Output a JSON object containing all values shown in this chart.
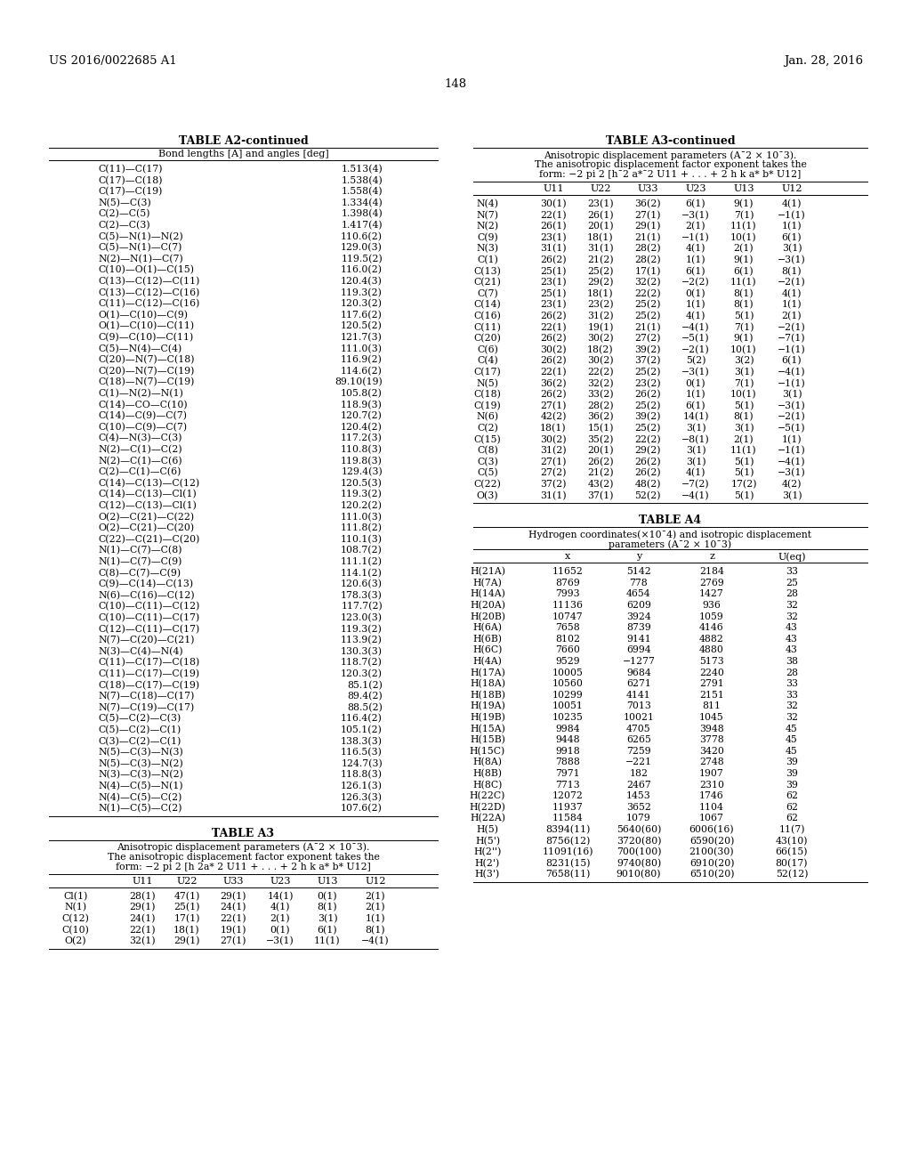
{
  "page_header_left": "US 2016/0022685 A1",
  "page_header_right": "Jan. 28, 2016",
  "page_number": "148",
  "bg_color": "#ffffff",
  "text_color": "#000000",
  "table_a2_title": "TABLE A2-continued",
  "table_a2_subtitle": "Bond lengths [A] and angles [deg]",
  "table_a2_data": [
    [
      "C(11)—C(17)",
      "1.513(4)"
    ],
    [
      "C(17)—C(18)",
      "1.538(4)"
    ],
    [
      "C(17)—C(19)",
      "1.558(4)"
    ],
    [
      "N(5)—C(3)",
      "1.334(4)"
    ],
    [
      "C(2)—C(5)",
      "1.398(4)"
    ],
    [
      "C(2)—C(3)",
      "1.417(4)"
    ],
    [
      "C(5)—N(1)—N(2)",
      "110.6(2)"
    ],
    [
      "C(5)—N(1)—C(7)",
      "129.0(3)"
    ],
    [
      "N(2)—N(1)—C(7)",
      "119.5(2)"
    ],
    [
      "C(10)—O(1)—C(15)",
      "116.0(2)"
    ],
    [
      "C(13)—C(12)—C(11)",
      "120.4(3)"
    ],
    [
      "C(13)—C(12)—C(16)",
      "119.3(2)"
    ],
    [
      "C(11)—C(12)—C(16)",
      "120.3(2)"
    ],
    [
      "O(1)—C(10)—C(9)",
      "117.6(2)"
    ],
    [
      "O(1)—C(10)—C(11)",
      "120.5(2)"
    ],
    [
      "C(9)—C(10)—C(11)",
      "121.7(3)"
    ],
    [
      "C(5)—N(4)—C(4)",
      "111.0(3)"
    ],
    [
      "C(20)—N(7)—C(18)",
      "116.9(2)"
    ],
    [
      "C(20)—N(7)—C(19)",
      "114.6(2)"
    ],
    [
      "C(18)—N(7)—C(19)",
      "89.10(19)"
    ],
    [
      "C(1)—N(2)—N(1)",
      "105.8(2)"
    ],
    [
      "C(14)—CO—C(10)",
      "118.9(3)"
    ],
    [
      "C(14)—C(9)—C(7)",
      "120.7(2)"
    ],
    [
      "C(10)—C(9)—C(7)",
      "120.4(2)"
    ],
    [
      "C(4)—N(3)—C(3)",
      "117.2(3)"
    ],
    [
      "N(2)—C(1)—C(2)",
      "110.8(3)"
    ],
    [
      "N(2)—C(1)—C(6)",
      "119.8(3)"
    ],
    [
      "C(2)—C(1)—C(6)",
      "129.4(3)"
    ],
    [
      "C(14)—C(13)—C(12)",
      "120.5(3)"
    ],
    [
      "C(14)—C(13)—Cl(1)",
      "119.3(2)"
    ],
    [
      "C(12)—C(13)—Cl(1)",
      "120.2(2)"
    ],
    [
      "O(2)—C(21)—C(22)",
      "111.0(3)"
    ],
    [
      "O(2)—C(21)—C(20)",
      "111.8(2)"
    ],
    [
      "C(22)—C(21)—C(20)",
      "110.1(3)"
    ],
    [
      "N(1)—C(7)—C(8)",
      "108.7(2)"
    ],
    [
      "N(1)—C(7)—C(9)",
      "111.1(2)"
    ],
    [
      "C(8)—C(7)—C(9)",
      "114.1(2)"
    ],
    [
      "C(9)—C(14)—C(13)",
      "120.6(3)"
    ],
    [
      "N(6)—C(16)—C(12)",
      "178.3(3)"
    ],
    [
      "C(10)—C(11)—C(12)",
      "117.7(2)"
    ],
    [
      "C(10)—C(11)—C(17)",
      "123.0(3)"
    ],
    [
      "C(12)—C(11)—C(17)",
      "119.3(2)"
    ],
    [
      "N(7)—C(20)—C(21)",
      "113.9(2)"
    ],
    [
      "N(3)—C(4)—N(4)",
      "130.3(3)"
    ],
    [
      "C(11)—C(17)—C(18)",
      "118.7(2)"
    ],
    [
      "C(11)—C(17)—C(19)",
      "120.3(2)"
    ],
    [
      "C(18)—C(17)—C(19)",
      "85.1(2)"
    ],
    [
      "N(7)—C(18)—C(17)",
      "89.4(2)"
    ],
    [
      "N(7)—C(19)—C(17)",
      "88.5(2)"
    ],
    [
      "C(5)—C(2)—C(3)",
      "116.4(2)"
    ],
    [
      "C(5)—C(2)—C(1)",
      "105.1(2)"
    ],
    [
      "C(3)—C(2)—C(1)",
      "138.3(3)"
    ],
    [
      "N(5)—C(3)—N(3)",
      "116.5(3)"
    ],
    [
      "N(5)—C(3)—N(2)",
      "124.7(3)"
    ],
    [
      "N(3)—C(3)—N(2)",
      "118.8(3)"
    ],
    [
      "N(4)—C(5)—N(1)",
      "126.1(3)"
    ],
    [
      "N(4)—C(5)—C(2)",
      "126.3(3)"
    ],
    [
      "N(1)—C(5)—C(2)",
      "107.6(2)"
    ]
  ],
  "table_a3cont_title": "TABLE A3-continued",
  "table_a3cont_sub1": "Anisotropic displacement parameters (A¯2 × 10¯3).",
  "table_a3cont_sub2": "The anisotropic displacement factor exponent takes the",
  "table_a3cont_sub3": "form: −2 pi 2 [h¯2 a*¯2 U11 + . . . + 2 h k a* b* U12]",
  "table_a3cont_headers": [
    "",
    "U11",
    "U22",
    "U33",
    "U23",
    "U13",
    "U12"
  ],
  "table_a3cont_data": [
    [
      "N(4)",
      "30(1)",
      "23(1)",
      "36(2)",
      "6(1)",
      "9(1)",
      "4(1)"
    ],
    [
      "N(7)",
      "22(1)",
      "26(1)",
      "27(1)",
      "−3(1)",
      "7(1)",
      "−1(1)"
    ],
    [
      "N(2)",
      "26(1)",
      "20(1)",
      "29(1)",
      "2(1)",
      "11(1)",
      "1(1)"
    ],
    [
      "C(9)",
      "23(1)",
      "18(1)",
      "21(1)",
      "−1(1)",
      "10(1)",
      "6(1)"
    ],
    [
      "N(3)",
      "31(1)",
      "31(1)",
      "28(2)",
      "4(1)",
      "2(1)",
      "3(1)"
    ],
    [
      "C(1)",
      "26(2)",
      "21(2)",
      "28(2)",
      "1(1)",
      "9(1)",
      "−3(1)"
    ],
    [
      "C(13)",
      "25(1)",
      "25(2)",
      "17(1)",
      "6(1)",
      "6(1)",
      "8(1)"
    ],
    [
      "C(21)",
      "23(1)",
      "29(2)",
      "32(2)",
      "−2(2)",
      "11(1)",
      "−2(1)"
    ],
    [
      "C(7)",
      "25(1)",
      "18(1)",
      "22(2)",
      "0(1)",
      "8(1)",
      "4(1)"
    ],
    [
      "C(14)",
      "23(1)",
      "23(2)",
      "25(2)",
      "1(1)",
      "8(1)",
      "1(1)"
    ],
    [
      "C(16)",
      "26(2)",
      "31(2)",
      "25(2)",
      "4(1)",
      "5(1)",
      "2(1)"
    ],
    [
      "C(11)",
      "22(1)",
      "19(1)",
      "21(1)",
      "−4(1)",
      "7(1)",
      "−2(1)"
    ],
    [
      "C(20)",
      "26(2)",
      "30(2)",
      "27(2)",
      "−5(1)",
      "9(1)",
      "−7(1)"
    ],
    [
      "C(6)",
      "30(2)",
      "18(2)",
      "39(2)",
      "−2(1)",
      "10(1)",
      "−1(1)"
    ],
    [
      "C(4)",
      "26(2)",
      "30(2)",
      "37(2)",
      "5(2)",
      "3(2)",
      "6(1)"
    ],
    [
      "C(17)",
      "22(1)",
      "22(2)",
      "25(2)",
      "−3(1)",
      "3(1)",
      "−4(1)"
    ],
    [
      "N(5)",
      "36(2)",
      "32(2)",
      "23(2)",
      "0(1)",
      "7(1)",
      "−1(1)"
    ],
    [
      "C(18)",
      "26(2)",
      "33(2)",
      "26(2)",
      "1(1)",
      "10(1)",
      "3(1)"
    ],
    [
      "C(19)",
      "27(1)",
      "28(2)",
      "25(2)",
      "6(1)",
      "5(1)",
      "−3(1)"
    ],
    [
      "N(6)",
      "42(2)",
      "36(2)",
      "39(2)",
      "14(1)",
      "8(1)",
      "−2(1)"
    ],
    [
      "C(2)",
      "18(1)",
      "15(1)",
      "25(2)",
      "3(1)",
      "3(1)",
      "−5(1)"
    ],
    [
      "C(15)",
      "30(2)",
      "35(2)",
      "22(2)",
      "−8(1)",
      "2(1)",
      "1(1)"
    ],
    [
      "C(8)",
      "31(2)",
      "20(1)",
      "29(2)",
      "3(1)",
      "11(1)",
      "−1(1)"
    ],
    [
      "C(3)",
      "27(1)",
      "26(2)",
      "26(2)",
      "3(1)",
      "5(1)",
      "−4(1)"
    ],
    [
      "C(5)",
      "27(2)",
      "21(2)",
      "26(2)",
      "4(1)",
      "5(1)",
      "−3(1)"
    ],
    [
      "C(22)",
      "37(2)",
      "43(2)",
      "48(2)",
      "−7(2)",
      "17(2)",
      "4(2)"
    ],
    [
      "O(3)",
      "31(1)",
      "37(1)",
      "52(2)",
      "−4(1)",
      "5(1)",
      "3(1)"
    ]
  ],
  "table_a4_title": "TABLE A4",
  "table_a4_sub1": "Hydrogen coordinates(×10¯4) and isotropic displacement",
  "table_a4_sub2": "parameters (A¯2 × 10¯3)",
  "table_a4_headers": [
    "",
    "x",
    "y",
    "z",
    "U(eq)"
  ],
  "table_a4_data": [
    [
      "H(21A)",
      "11652",
      "5142",
      "2184",
      "33"
    ],
    [
      "H(7A)",
      "8769",
      "778",
      "2769",
      "25"
    ],
    [
      "H(14A)",
      "7993",
      "4654",
      "1427",
      "28"
    ],
    [
      "H(20A)",
      "11136",
      "6209",
      "936",
      "32"
    ],
    [
      "H(20B)",
      "10747",
      "3924",
      "1059",
      "32"
    ],
    [
      "H(6A)",
      "7658",
      "8739",
      "4146",
      "43"
    ],
    [
      "H(6B)",
      "8102",
      "9141",
      "4882",
      "43"
    ],
    [
      "H(6C)",
      "7660",
      "6994",
      "4880",
      "43"
    ],
    [
      "H(4A)",
      "9529",
      "−1277",
      "5173",
      "38"
    ],
    [
      "H(17A)",
      "10005",
      "9684",
      "2240",
      "28"
    ],
    [
      "H(18A)",
      "10560",
      "6271",
      "2791",
      "33"
    ],
    [
      "H(18B)",
      "10299",
      "4141",
      "2151",
      "33"
    ],
    [
      "H(19A)",
      "10051",
      "7013",
      "811",
      "32"
    ],
    [
      "H(19B)",
      "10235",
      "10021",
      "1045",
      "32"
    ],
    [
      "H(15A)",
      "9984",
      "4705",
      "3948",
      "45"
    ],
    [
      "H(15B)",
      "9448",
      "6265",
      "3778",
      "45"
    ],
    [
      "H(15C)",
      "9918",
      "7259",
      "3420",
      "45"
    ],
    [
      "H(8A)",
      "7888",
      "−221",
      "2748",
      "39"
    ],
    [
      "H(8B)",
      "7971",
      "182",
      "1907",
      "39"
    ],
    [
      "H(8C)",
      "7713",
      "2467",
      "2310",
      "39"
    ],
    [
      "H(22C)",
      "12072",
      "1453",
      "1746",
      "62"
    ],
    [
      "H(22D)",
      "11937",
      "3652",
      "1104",
      "62"
    ],
    [
      "H(22A)",
      "11584",
      "1079",
      "1067",
      "62"
    ],
    [
      "H(5)",
      "8394(11)",
      "5640(60)",
      "6006(16)",
      "11(7)"
    ],
    [
      "H(5')",
      "8756(12)",
      "3720(80)",
      "6590(20)",
      "43(10)"
    ],
    [
      "H(2'')",
      "11091(16)",
      "700(100)",
      "2100(30)",
      "66(15)"
    ],
    [
      "H(2')",
      "8231(15)",
      "9740(80)",
      "6910(20)",
      "80(17)"
    ],
    [
      "H(3')",
      "7658(11)",
      "9010(80)",
      "6510(20)",
      "52(12)"
    ]
  ],
  "table_a3_title": "TABLE A3",
  "table_a3_sub1": "Anisotropic displacement parameters (A¯2 × 10¯3).",
  "table_a3_sub2": "The anisotropic displacement factor exponent takes the",
  "table_a3_sub3": "form: −2 pi 2 [h 2a* 2 U11 + . . . + 2 h k a* b* U12]",
  "table_a3_headers": [
    "",
    "U11",
    "U22",
    "U33",
    "U23",
    "U13",
    "U12"
  ],
  "table_a3_data": [
    [
      "Cl(1)",
      "28(1)",
      "47(1)",
      "29(1)",
      "14(1)",
      "0(1)",
      "2(1)"
    ],
    [
      "N(1)",
      "29(1)",
      "25(1)",
      "24(1)",
      "4(1)",
      "8(1)",
      "2(1)"
    ],
    [
      "C(12)",
      "24(1)",
      "17(1)",
      "22(1)",
      "2(1)",
      "3(1)",
      "1(1)"
    ],
    [
      "C(10)",
      "22(1)",
      "18(1)",
      "19(1)",
      "0(1)",
      "6(1)",
      "8(1)"
    ],
    [
      "O(2)",
      "32(1)",
      "29(1)",
      "27(1)",
      "−3(1)",
      "11(1)",
      "−4(1)"
    ]
  ]
}
